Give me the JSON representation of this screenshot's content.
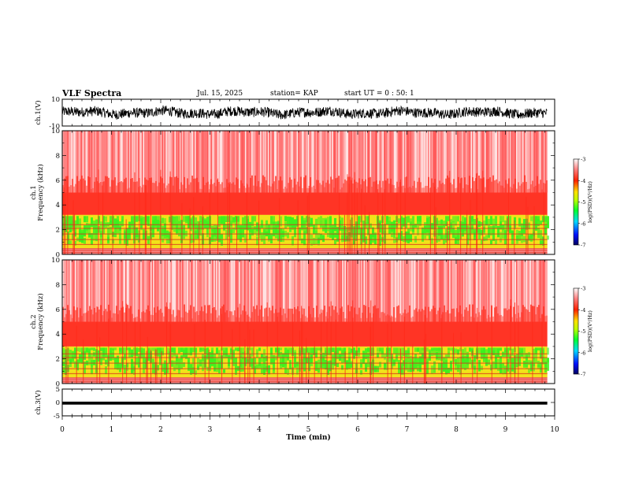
{
  "header": {
    "title": "VLF Spectra",
    "date": "Jul. 15, 2025",
    "station": "station= KAP",
    "start": "start UT =  0 : 50: 1"
  },
  "chart_data": [
    {
      "type": "line",
      "panel": "waveform",
      "ylabel": "ch.1(V)",
      "ylim": [
        -10,
        10
      ],
      "yticks": [
        10,
        -10
      ],
      "x_range_min": [
        0,
        9.85
      ],
      "trace_band": [
        -4,
        4
      ],
      "color": "#000000"
    },
    {
      "type": "heatmap",
      "panel": "spectrogram",
      "ylabel": "ch.1\nFrequency (kHz)",
      "ylim": [
        0,
        10
      ],
      "yticks": [
        0,
        2,
        4,
        6,
        8,
        10
      ],
      "x_range_min": [
        0,
        9.85
      ],
      "bands_khz": [
        {
          "from": 0,
          "to": 0.5,
          "level": "yellow-red stripes"
        },
        {
          "from": 0.5,
          "to": 3.2,
          "level": "green-yellow"
        },
        {
          "from": 3.2,
          "to": 5.0,
          "level": "red"
        },
        {
          "from": 5.0,
          "to": 10,
          "level": "speckled light red"
        }
      ],
      "colorbar": {
        "label": "log(PSD)(V²/Hz)",
        "range": [
          -7,
          -3
        ],
        "ticks": [
          "-3",
          "-4",
          "-5",
          "-6",
          "-7"
        ]
      }
    },
    {
      "type": "heatmap",
      "panel": "spectrogram",
      "ylabel": "ch.2\nFrequency (kHz)",
      "ylim": [
        0,
        10
      ],
      "yticks": [
        0,
        2,
        4,
        6,
        8,
        10
      ],
      "x_range_min": [
        0,
        9.85
      ],
      "bands_khz": [
        {
          "from": 0,
          "to": 0.5,
          "level": "yellow-red stripes"
        },
        {
          "from": 0.5,
          "to": 3.0,
          "level": "green-yellow"
        },
        {
          "from": 3.0,
          "to": 5.0,
          "level": "red"
        },
        {
          "from": 5.0,
          "to": 10,
          "level": "speckled light red"
        }
      ],
      "colorbar": {
        "label": "log(PSD)(V²/Hz)",
        "range": [
          -7,
          -3
        ],
        "ticks": [
          "-3",
          "-4",
          "-5",
          "-6",
          "-7"
        ]
      }
    },
    {
      "type": "line",
      "panel": "waveform",
      "ylabel": "ch.3(V)",
      "ylim": [
        -5,
        5
      ],
      "yticks": [
        5,
        0,
        -5
      ],
      "x_range_min": [
        0,
        9.85
      ],
      "trace_band": [
        -0.8,
        0.3
      ],
      "color": "#000000"
    }
  ],
  "xaxis": {
    "label": "Time (min)",
    "ticks": [
      "0",
      "1",
      "2",
      "3",
      "4",
      "5",
      "6",
      "7",
      "8",
      "9",
      "10"
    ],
    "xlim": [
      0,
      10
    ]
  },
  "colors": {
    "frame": "#000000",
    "bg_red": "#ff9090",
    "red": "#ff2a1a",
    "yellow": "#f2e21a",
    "green": "#3cf01e"
  }
}
